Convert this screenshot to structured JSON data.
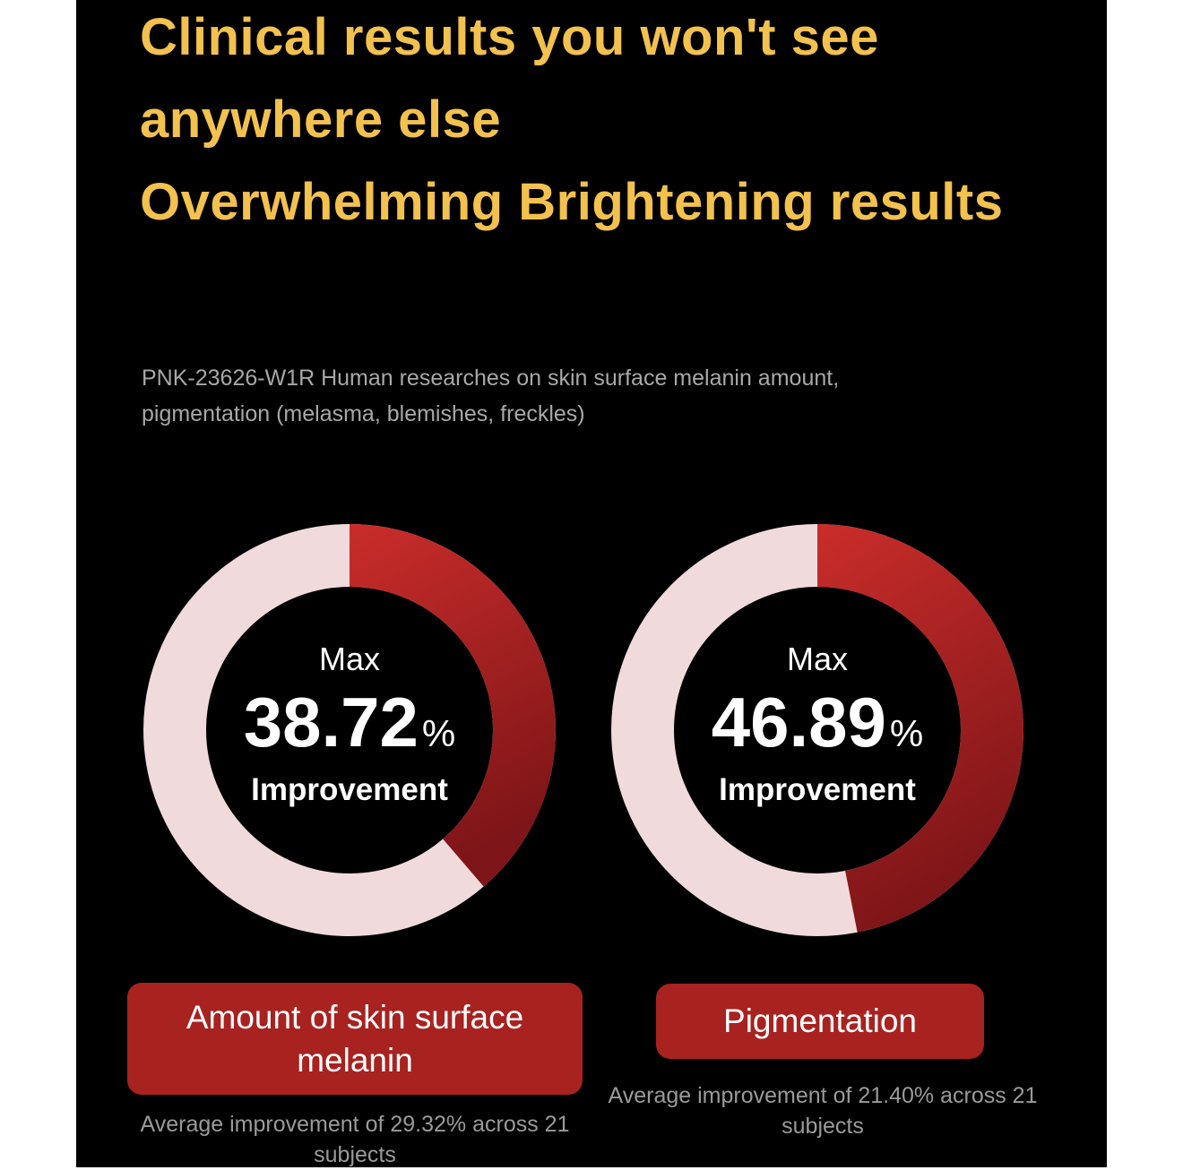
{
  "heading": {
    "title": [
      "Clinical results you won't see anywhere else",
      "Overwhelming Brightening results"
    ],
    "subtitle": "PNK-23626-W1R Human researches on skin surface melanin amount, pigmentation (melasma, blemishes, freckles)"
  },
  "chart_data": [
    {
      "type": "donut",
      "prefix": "Max",
      "values": [
        38.72
      ],
      "unit": "%",
      "suffix": "Improvement",
      "color": "#b5221f",
      "track_color": "#f1dadc",
      "category": "Amount of skin surface melanin",
      "note": "Average improvement of 29.32% across 21 subjects"
    },
    {
      "type": "donut",
      "prefix": "Max",
      "values": [
        46.89
      ],
      "unit": "%",
      "suffix": "Improvement",
      "color": "#b5221f",
      "track_color": "#f1dadc",
      "category": "Pigmentation",
      "note": "Average improvement of 21.40% across 21 subjects"
    }
  ]
}
